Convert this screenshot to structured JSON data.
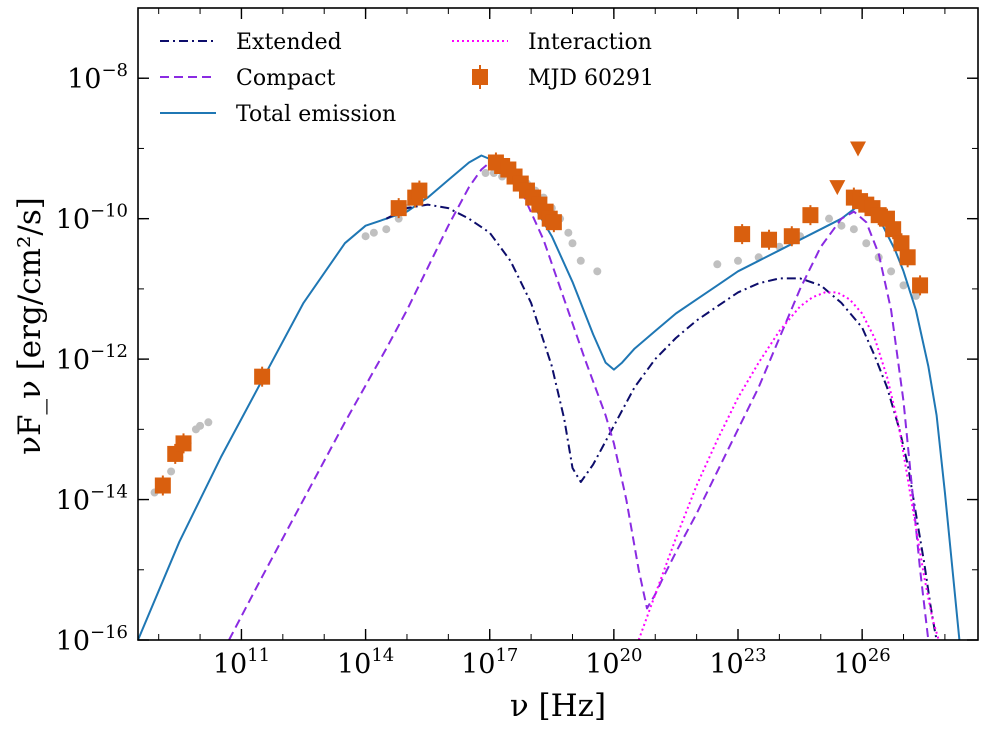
{
  "chart_data": {
    "type": "line",
    "xlabel": "ν [Hz]",
    "ylabel": "νF_ν [erg/cm²/s]",
    "x_scale": "log",
    "y_scale": "log",
    "xlim_log10": [
      8.5,
      28.8
    ],
    "ylim_log10": [
      -16,
      -7
    ],
    "x_ticks": [
      {
        "base": "10",
        "exp": "11",
        "log10": 11
      },
      {
        "base": "10",
        "exp": "14",
        "log10": 14
      },
      {
        "base": "10",
        "exp": "17",
        "log10": 17
      },
      {
        "base": "10",
        "exp": "20",
        "log10": 20
      },
      {
        "base": "10",
        "exp": "23",
        "log10": 23
      },
      {
        "base": "10",
        "exp": "26",
        "log10": 26
      }
    ],
    "y_ticks": [
      {
        "base": "10",
        "exp": "−8",
        "log10": -8
      },
      {
        "base": "10",
        "exp": "−10",
        "log10": -10
      },
      {
        "base": "10",
        "exp": "−12",
        "log10": -12
      },
      {
        "base": "10",
        "exp": "−14",
        "log10": -14
      },
      {
        "base": "10",
        "exp": "−16",
        "log10": -16
      }
    ],
    "legend": {
      "placement": "top-left",
      "entries": [
        {
          "label": "Extended",
          "style": "dashdot",
          "color": "#0d0d6b"
        },
        {
          "label": "Compact",
          "style": "dashed",
          "color": "#8a2be2"
        },
        {
          "label": "Total emission",
          "style": "solid",
          "color": "#1f77b4"
        },
        {
          "label": "Interaction",
          "style": "dotted",
          "color": "#ff00ff"
        },
        {
          "label": "MJD 60291",
          "style": "marker",
          "color": "#d95f0e"
        }
      ]
    },
    "series": [
      {
        "name": "Total emission",
        "style": "solid",
        "color": "#1f77b4",
        "x": [
          8.5,
          9.5,
          10.5,
          11.5,
          12.5,
          13.5,
          14.0,
          14.5,
          15.0,
          15.5,
          16.0,
          16.5,
          16.8,
          17.0,
          17.5,
          18.0,
          18.5,
          19.0,
          19.5,
          19.8,
          20.0,
          20.2,
          20.5,
          21.0,
          21.5,
          22.0,
          22.5,
          23.0,
          23.5,
          24.0,
          24.5,
          25.0,
          25.5,
          25.9,
          26.2,
          26.5,
          26.8,
          27.0,
          27.3,
          27.6,
          27.8,
          28.0,
          28.2,
          28.35
        ],
        "y": [
          -16.0,
          -14.6,
          -13.4,
          -12.3,
          -11.2,
          -10.35,
          -10.1,
          -10.0,
          -9.9,
          -9.7,
          -9.45,
          -9.2,
          -9.1,
          -9.15,
          -9.4,
          -9.75,
          -10.25,
          -10.9,
          -11.65,
          -12.05,
          -12.15,
          -12.05,
          -11.85,
          -11.6,
          -11.35,
          -11.15,
          -10.95,
          -10.75,
          -10.6,
          -10.45,
          -10.3,
          -10.15,
          -10.0,
          -9.82,
          -9.88,
          -10.1,
          -10.45,
          -10.75,
          -11.3,
          -12.1,
          -12.8,
          -13.9,
          -15.1,
          -16.0
        ]
      },
      {
        "name": "Extended",
        "style": "dashdot",
        "color": "#0d0d6b",
        "x": [
          14.5,
          15.0,
          15.5,
          16.0,
          16.5,
          17.0,
          17.5,
          18.0,
          18.5,
          18.8,
          19.0,
          19.2,
          19.5,
          20.0,
          20.5,
          21.0,
          21.5,
          22.0,
          22.5,
          23.0,
          23.5,
          24.0,
          24.5,
          25.0,
          25.5,
          26.0,
          26.3,
          26.6,
          26.9,
          27.1,
          27.3,
          27.5,
          27.65,
          27.75,
          27.8
        ],
        "y": [
          -10.0,
          -9.85,
          -9.8,
          -9.85,
          -10.0,
          -10.2,
          -10.6,
          -11.2,
          -12.1,
          -12.85,
          -13.55,
          -13.75,
          -13.5,
          -12.95,
          -12.4,
          -12.0,
          -11.7,
          -11.45,
          -11.25,
          -11.05,
          -10.92,
          -10.85,
          -10.85,
          -10.95,
          -11.2,
          -11.55,
          -11.95,
          -12.4,
          -13.0,
          -13.5,
          -14.2,
          -14.9,
          -15.5,
          -15.85,
          -16.0
        ]
      },
      {
        "name": "Compact",
        "style": "dashed",
        "color": "#8a2be2",
        "x": [
          10.7,
          11.5,
          12.5,
          13.5,
          14.5,
          15.0,
          15.5,
          16.0,
          16.5,
          16.8,
          17.0,
          17.3,
          17.8,
          18.3,
          18.8,
          19.3,
          19.8,
          20.0,
          20.3,
          20.6,
          20.8,
          21.0,
          21.2,
          21.5,
          22.0,
          22.5,
          23.0,
          23.5,
          24.0,
          24.5,
          25.0,
          25.5,
          25.8,
          26.1,
          26.4,
          26.7,
          27.0,
          27.2,
          27.4,
          27.6
        ],
        "y": [
          -16.0,
          -15.1,
          -14.0,
          -12.9,
          -11.85,
          -11.3,
          -10.7,
          -10.1,
          -9.55,
          -9.3,
          -9.2,
          -9.3,
          -9.65,
          -10.3,
          -11.15,
          -12.0,
          -12.8,
          -13.2,
          -14.0,
          -15.0,
          -15.55,
          -15.35,
          -15.1,
          -14.75,
          -14.2,
          -13.6,
          -13.0,
          -12.4,
          -11.7,
          -11.0,
          -10.4,
          -10.0,
          -9.9,
          -10.05,
          -10.5,
          -11.3,
          -12.6,
          -13.8,
          -15.0,
          -16.0
        ]
      },
      {
        "name": "Interaction",
        "style": "dotted",
        "color": "#ff00ff",
        "x": [
          20.6,
          21.0,
          21.5,
          22.0,
          22.5,
          23.0,
          23.5,
          24.0,
          24.5,
          24.8,
          25.1,
          25.4,
          25.7,
          26.0,
          26.3,
          26.6,
          26.9,
          27.1,
          27.3,
          27.5,
          27.7,
          27.85
        ],
        "y": [
          -16.0,
          -15.35,
          -14.55,
          -13.8,
          -13.15,
          -12.55,
          -12.05,
          -11.6,
          -11.25,
          -11.12,
          -11.05,
          -11.05,
          -11.15,
          -11.35,
          -11.7,
          -12.25,
          -13.0,
          -13.7,
          -14.4,
          -15.1,
          -15.7,
          -16.0
        ]
      }
    ],
    "mjd_60291_points": {
      "name": "MJD 60291",
      "marker": "square",
      "color": "#d95f0e",
      "x": [
        9.1,
        9.4,
        9.6,
        11.5,
        14.8,
        15.2,
        15.3,
        17.15,
        17.3,
        17.45,
        17.6,
        17.75,
        17.9,
        18.05,
        18.2,
        18.35,
        18.45,
        18.55,
        23.1,
        23.75,
        24.3,
        24.75,
        25.8,
        25.95,
        26.1,
        26.25,
        26.4,
        26.6,
        26.75,
        26.95,
        27.1,
        27.4
      ],
      "y": [
        -13.8,
        -13.35,
        -13.2,
        -12.25,
        -9.85,
        -9.7,
        -9.6,
        -9.2,
        -9.25,
        -9.3,
        -9.4,
        -9.5,
        -9.6,
        -9.7,
        -9.8,
        -9.9,
        -10.0,
        -10.05,
        -10.22,
        -10.3,
        -10.25,
        -9.95,
        -9.7,
        -9.75,
        -9.8,
        -9.85,
        -9.95,
        -10.0,
        -10.15,
        -10.35,
        -10.55,
        -10.95
      ]
    },
    "mjd_60291_upper_limits": {
      "marker": "triangle-down",
      "color": "#d95f0e",
      "x": [
        25.4,
        25.9
      ],
      "y": [
        -9.55,
        -9.0
      ]
    },
    "archival_points": {
      "marker": "circle",
      "color": "#c0c0c0",
      "x": [
        8.9,
        9.1,
        9.3,
        9.5,
        9.7,
        9.9,
        10.0,
        10.2,
        14.0,
        14.2,
        14.5,
        14.8,
        15.0,
        16.9,
        17.1,
        17.3,
        17.5,
        17.7,
        17.9,
        18.1,
        18.3,
        18.5,
        18.7,
        18.9,
        19.0,
        19.2,
        19.6,
        22.5,
        23.0,
        23.5,
        24.0,
        24.5,
        25.2,
        25.5,
        25.8,
        26.1,
        26.4,
        26.7,
        27.0,
        27.3
      ],
      "y": [
        -13.9,
        -13.75,
        -13.6,
        -13.4,
        -13.2,
        -13.0,
        -12.95,
        -12.9,
        -10.25,
        -10.2,
        -10.15,
        -10.0,
        -9.85,
        -9.35,
        -9.35,
        -9.4,
        -9.4,
        -9.45,
        -9.5,
        -9.6,
        -9.7,
        -9.85,
        -10.0,
        -10.2,
        -10.35,
        -10.6,
        -10.75,
        -10.65,
        -10.6,
        -10.55,
        -10.4,
        -10.25,
        -10.0,
        -10.1,
        -10.15,
        -10.35,
        -10.55,
        -10.75,
        -10.95,
        -11.1
      ]
    }
  }
}
